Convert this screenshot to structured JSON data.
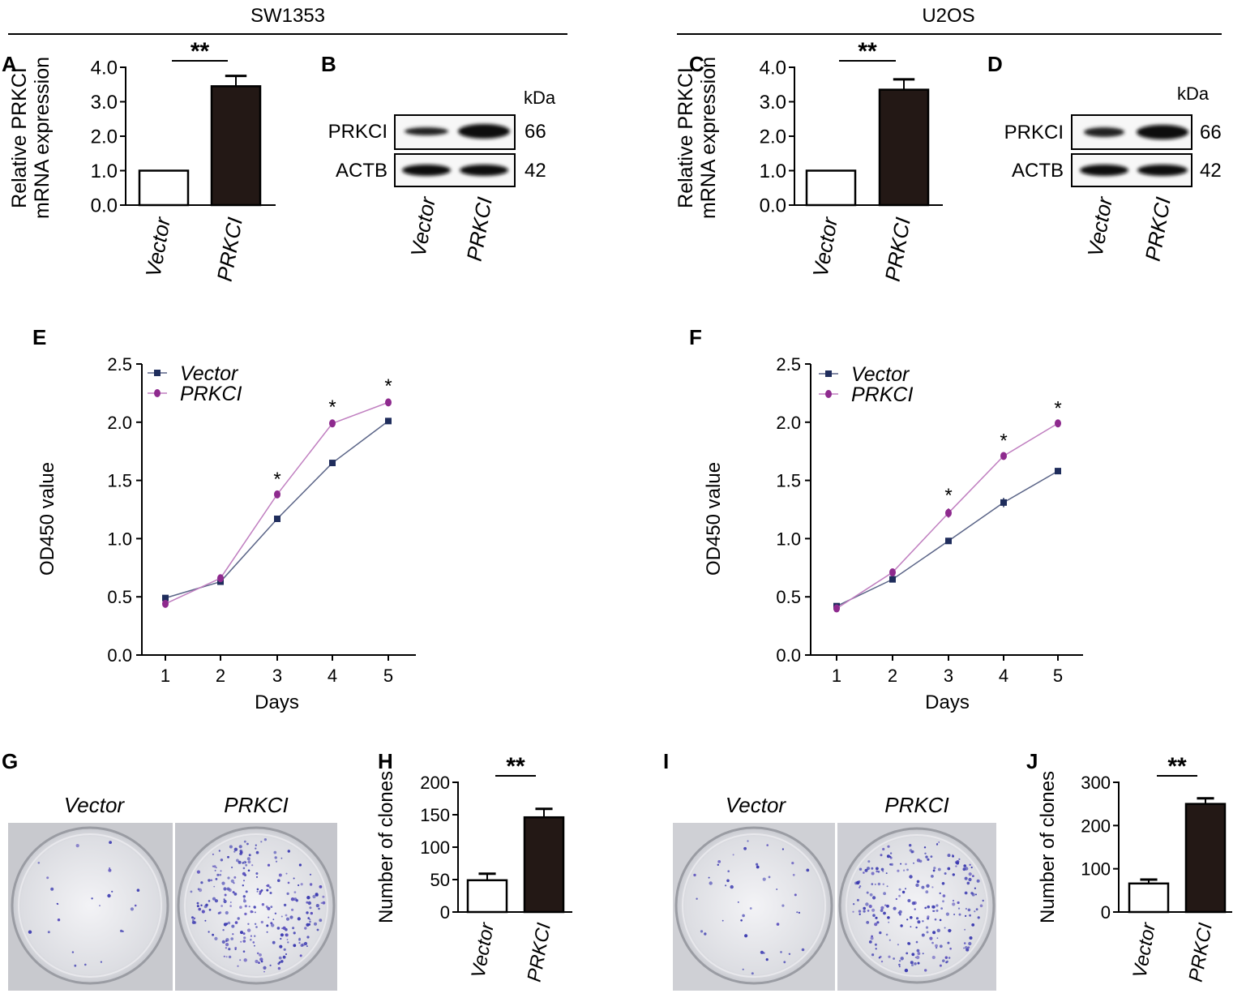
{
  "headers": {
    "left": "SW1353",
    "right": "U2OS"
  },
  "panel_letters": {
    "A": "A",
    "B": "B",
    "C": "C",
    "D": "D",
    "E": "E",
    "F": "F",
    "G": "G",
    "H": "H",
    "I": "I",
    "J": "J"
  },
  "colors": {
    "vector": "#1f2d5c",
    "prkci": "#8e2a8e",
    "bar_fill": "#231815",
    "blot_band": "#1a1a1a"
  },
  "blots": [
    {
      "kda_label": "kDa",
      "rows": [
        {
          "protein": "PRKCI",
          "kda": "66"
        },
        {
          "protein": "ACTB",
          "kda": "42"
        }
      ],
      "lanes": [
        "Vector",
        "PRKCI"
      ]
    },
    {
      "kda_label": "kDa",
      "rows": [
        {
          "protein": "PRKCI",
          "kda": "66"
        },
        {
          "protein": "ACTB",
          "kda": "42"
        }
      ],
      "lanes": [
        "Vector",
        "PRKCI"
      ]
    }
  ],
  "colony_images": [
    {
      "labels": [
        "Vector",
        "PRKCI"
      ]
    },
    {
      "labels": [
        "Vector",
        "PRKCI"
      ]
    }
  ],
  "chart_data": [
    {
      "id": "A",
      "type": "bar",
      "title": "",
      "categories": [
        "Vector",
        "PRKCI"
      ],
      "values": [
        1.0,
        3.45
      ],
      "errors": [
        0,
        0.3
      ],
      "ylabel": "Relative PRKCI\nmRNA expression",
      "ylim": [
        0,
        4.0
      ],
      "yticks": [
        "0.0",
        "1.0",
        "2.0",
        "3.0",
        "4.0"
      ],
      "significance": "**"
    },
    {
      "id": "C",
      "type": "bar",
      "title": "",
      "categories": [
        "Vector",
        "PRKCI"
      ],
      "values": [
        1.0,
        3.35
      ],
      "errors": [
        0,
        0.3
      ],
      "ylabel": "Relative PRKCI\nmRNA expression",
      "ylim": [
        0,
        4.0
      ],
      "yticks": [
        "0.0",
        "1.0",
        "2.0",
        "3.0",
        "4.0"
      ],
      "significance": "**"
    },
    {
      "id": "E",
      "type": "line",
      "x": [
        1,
        2,
        3,
        4,
        5
      ],
      "xticks": [
        "1",
        "2",
        "3",
        "4",
        "5"
      ],
      "xlabel": "Days",
      "ylabel": "OD450 value",
      "ylim": [
        0,
        2.5
      ],
      "yticks": [
        "0.0",
        "0.5",
        "1.0",
        "1.5",
        "2.0",
        "2.5"
      ],
      "series": [
        {
          "name": "Vector",
          "values": [
            0.49,
            0.63,
            1.17,
            1.65,
            2.01
          ],
          "errors": [
            0.02,
            0.02,
            0.02,
            0.02,
            0.02
          ]
        },
        {
          "name": "PRKCI",
          "values": [
            0.44,
            0.66,
            1.38,
            1.99,
            2.17
          ],
          "errors": [
            0.02,
            0.02,
            0.02,
            0.03,
            0.03
          ]
        }
      ],
      "significance_marks": [
        {
          "x": 3,
          "text": "*"
        },
        {
          "x": 4,
          "text": "*"
        },
        {
          "x": 5,
          "text": "*"
        }
      ],
      "legend": "top-left"
    },
    {
      "id": "F",
      "type": "line",
      "x": [
        1,
        2,
        3,
        4,
        5
      ],
      "xticks": [
        "1",
        "2",
        "3",
        "4",
        "5"
      ],
      "xlabel": "Days",
      "ylabel": "OD450 value",
      "ylim": [
        0,
        2.5
      ],
      "yticks": [
        "0.0",
        "0.5",
        "1.0",
        "1.5",
        "2.0",
        "2.5"
      ],
      "series": [
        {
          "name": "Vector",
          "values": [
            0.42,
            0.65,
            0.98,
            1.31,
            1.58
          ],
          "errors": [
            0.02,
            0.02,
            0.02,
            0.04,
            0.02
          ]
        },
        {
          "name": "PRKCI",
          "values": [
            0.4,
            0.71,
            1.22,
            1.71,
            1.99
          ],
          "errors": [
            0.02,
            0.02,
            0.04,
            0.02,
            0.02
          ]
        }
      ],
      "significance_marks": [
        {
          "x": 3,
          "text": "*"
        },
        {
          "x": 4,
          "text": "*"
        },
        {
          "x": 5,
          "text": "*"
        }
      ],
      "legend": "top-left"
    },
    {
      "id": "H",
      "type": "bar",
      "categories": [
        "Vector",
        "PRKCI"
      ],
      "values": [
        49,
        146
      ],
      "errors": [
        10,
        13
      ],
      "ylabel": "Number of clones",
      "ylim": [
        0,
        200
      ],
      "yticks": [
        "0",
        "50",
        "100",
        "150",
        "200"
      ],
      "significance": "**"
    },
    {
      "id": "J",
      "type": "bar",
      "categories": [
        "Vector",
        "PRKCI"
      ],
      "values": [
        66,
        250
      ],
      "errors": [
        9,
        13
      ],
      "ylabel": "Number of clones",
      "ylim": [
        0,
        300
      ],
      "yticks": [
        "0",
        "100",
        "200",
        "300"
      ],
      "significance": "**"
    }
  ]
}
